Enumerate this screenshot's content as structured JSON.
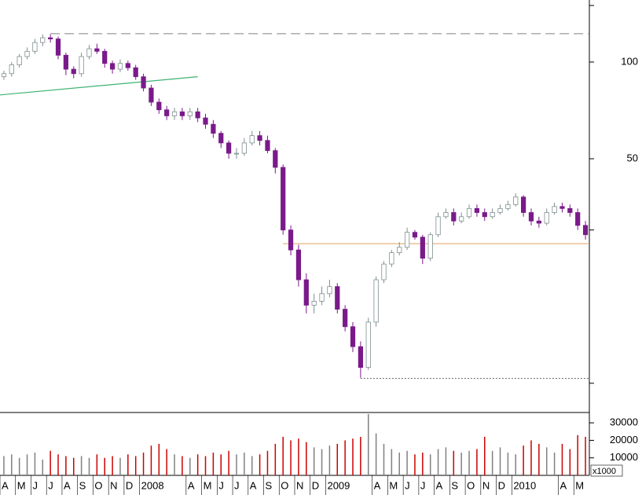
{
  "chart_data": {
    "type": "candlestick",
    "log_scale": true,
    "categories": [
      "A",
      null,
      "M",
      null,
      "J",
      null,
      "J",
      null,
      "A",
      null,
      "S",
      null,
      "O",
      null,
      "N",
      null,
      "D",
      null,
      "2008",
      null,
      null,
      null,
      null,
      null,
      "A",
      null,
      "M",
      null,
      "J",
      null,
      "J",
      null,
      "A",
      null,
      "S",
      null,
      "O",
      null,
      "N",
      null,
      "D",
      null,
      "2009",
      null,
      null,
      null,
      null,
      null,
      "A",
      null,
      "M",
      null,
      "J",
      null,
      "J",
      null,
      "A",
      null,
      "S",
      null,
      "O",
      null,
      "N",
      null,
      "D",
      null,
      "2010",
      null,
      null,
      null,
      null,
      null,
      "A",
      null,
      "M",
      null
    ],
    "open": [
      90,
      92,
      98,
      104,
      108,
      115,
      119,
      118,
      105,
      95,
      92,
      104,
      110,
      108,
      99,
      95,
      99,
      96,
      90,
      83,
      75,
      71,
      68,
      70,
      68,
      70,
      67,
      64,
      60,
      56,
      52,
      52,
      56,
      59,
      57,
      53,
      47,
      30,
      26,
      21,
      17.5,
      18,
      19,
      20,
      17,
      15,
      13,
      11.2,
      15.5,
      21,
      23.5,
      25.5,
      26.5,
      29.5,
      28.5,
      24.5,
      29,
      33,
      34,
      32,
      33,
      35,
      34,
      33,
      34,
      35,
      36,
      38,
      34,
      32,
      31.5,
      34,
      35.5,
      35,
      34,
      31
    ],
    "high": [
      94,
      100,
      106,
      111,
      118,
      122,
      122,
      120,
      107,
      97,
      107,
      113,
      114,
      110,
      101,
      102,
      101,
      98,
      92,
      85,
      77,
      73,
      72,
      72,
      72,
      72,
      69,
      66,
      61,
      57,
      54,
      58,
      61,
      61,
      59,
      54,
      48,
      31,
      27,
      22,
      19,
      20,
      21,
      20.5,
      17.5,
      15.5,
      13.5,
      16,
      21.5,
      24,
      26,
      27.5,
      30.5,
      30,
      29,
      29.5,
      34,
      35,
      35,
      34,
      36,
      36,
      35,
      35,
      36,
      37,
      39,
      38.5,
      35,
      33,
      35,
      36.5,
      36.5,
      36,
      35,
      32
    ],
    "low": [
      88,
      90,
      96,
      102,
      106,
      112,
      115,
      102,
      91,
      89,
      90,
      102,
      106,
      96,
      92,
      93,
      94,
      88,
      81,
      73,
      69,
      66,
      66,
      66,
      66,
      65,
      62,
      58,
      54,
      50,
      50,
      51,
      55,
      55,
      52,
      45,
      29,
      25,
      20,
      16.5,
      16.5,
      17.5,
      18.5,
      16.5,
      14.5,
      12.5,
      10.4,
      11,
      15,
      20.5,
      23,
      25,
      26,
      28,
      23.5,
      24,
      28.5,
      32.5,
      31,
      31.5,
      32.5,
      33,
      32,
      32.5,
      33.5,
      34.5,
      35.5,
      33,
      31,
      30.5,
      31,
      33.5,
      34,
      33,
      30,
      28
    ],
    "close": [
      92,
      98,
      104,
      108,
      115,
      119,
      118,
      105,
      95,
      92,
      104,
      110,
      108,
      99,
      95,
      99,
      96,
      90,
      83,
      75,
      71,
      68,
      70,
      68,
      70,
      67,
      64,
      60,
      56,
      52,
      52,
      56,
      59,
      57,
      53,
      47,
      30,
      26,
      21,
      17.5,
      18,
      19,
      20,
      17,
      15,
      13,
      11.2,
      15.5,
      21,
      23.5,
      25.5,
      26.5,
      29.5,
      28.5,
      24.5,
      29,
      33,
      34,
      32,
      33,
      35,
      34,
      33,
      34,
      35,
      36,
      38,
      34,
      32,
      31.5,
      34,
      35.5,
      35,
      34,
      31,
      29
    ],
    "volume": [
      11000,
      12000,
      10000,
      12000,
      13000,
      9000,
      14000,
      12000,
      11000,
      10000,
      11000,
      10000,
      12000,
      10000,
      11000,
      10000,
      12000,
      11000,
      13000,
      17000,
      18000,
      15000,
      12000,
      11000,
      10000,
      12000,
      11000,
      13000,
      12000,
      14000,
      12000,
      13000,
      11000,
      12000,
      14000,
      18000,
      22000,
      20000,
      21000,
      19000,
      16000,
      15000,
      17000,
      18000,
      20000,
      21000,
      22000,
      35000,
      24000,
      18000,
      15000,
      13000,
      14000,
      12000,
      13000,
      12000,
      15000,
      16000,
      14000,
      13000,
      14000,
      15000,
      22000,
      14000,
      16000,
      13000,
      12000,
      17000,
      20000,
      18000,
      16000,
      13000,
      18000,
      15000,
      23000,
      22000
    ],
    "up_color": "#ffffff",
    "up_edge": "#7f8f8f",
    "down_color": "#7a1a8a",
    "volume_up_color": "#808080",
    "volume_down_color": "#cc0000",
    "ylim": [
      8.2,
      156
    ],
    "yticks": [
      50,
      100
    ],
    "yminor_ticks": [
      10,
      30,
      150
    ],
    "volume_ylim": [
      0,
      35000
    ],
    "volume_yticks": [
      10000,
      20000,
      30000
    ],
    "volume_unit": "x1000",
    "levels": [
      {
        "value": 122.5,
        "from": 6,
        "color": "#808080",
        "style": "dashed"
      },
      {
        "value": 27.2,
        "from": 36,
        "color": "#e0a060",
        "style": "solid"
      },
      {
        "value": 10.35,
        "from": 46,
        "color": "#606060",
        "style": "dotted"
      }
    ],
    "trend_line": {
      "x": [
        0,
        25
      ],
      "y": [
        79,
        90
      ],
      "color": "#3cb371"
    }
  }
}
